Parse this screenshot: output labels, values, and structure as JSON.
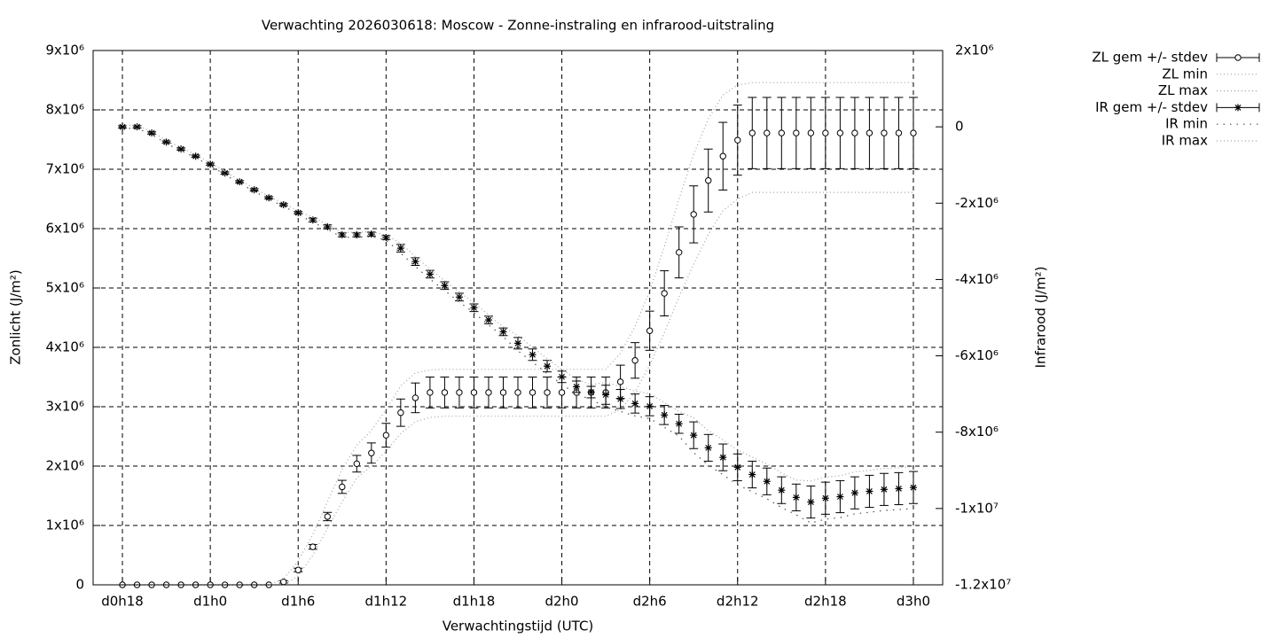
{
  "chart_data": {
    "type": "errorbar",
    "title": "Verwachting 2026030618: Moscow - Zonne-instraling en infrarood-uitstraling",
    "xlabel": "Verwachtingstijd (UTC)",
    "ylabel": "Zonlicht (J/m²)",
    "y2label": "Infrarood (J/m²)",
    "grid": true,
    "legend": "outside",
    "xlim": [
      16,
      74
    ],
    "xticks": [
      {
        "value": 18,
        "label": "d0h18"
      },
      {
        "value": 24,
        "label": "d1h0"
      },
      {
        "value": 30,
        "label": "d1h6"
      },
      {
        "value": 36,
        "label": "d1h12"
      },
      {
        "value": 42,
        "label": "d1h18"
      },
      {
        "value": 48,
        "label": "d2h0"
      },
      {
        "value": 54,
        "label": "d2h6"
      },
      {
        "value": 60,
        "label": "d2h12"
      },
      {
        "value": 66,
        "label": "d2h18"
      },
      {
        "value": 72,
        "label": "d3h0"
      }
    ],
    "ylim": [
      0,
      9000000
    ],
    "yticks": [
      0,
      {
        "value": 1000000,
        "label": "1x10⁶"
      },
      {
        "value": 2000000,
        "label": "2x10⁶"
      },
      {
        "value": 3000000,
        "label": "3x10⁶"
      },
      {
        "value": 4000000,
        "label": "4x10⁶"
      },
      {
        "value": 5000000,
        "label": "5x10⁶"
      },
      {
        "value": 6000000,
        "label": "6x10⁶"
      },
      {
        "value": 7000000,
        "label": "7x10⁶"
      },
      {
        "value": 8000000,
        "label": "8x10⁶"
      },
      {
        "value": 9000000,
        "label": "9x10⁶"
      }
    ],
    "y2lim": [
      -12000000,
      2000000
    ],
    "y2ticks": [
      {
        "value": -12000000,
        "label": "-1.2x10⁷"
      },
      {
        "value": -10000000,
        "label": "-1x10⁷"
      },
      {
        "value": -8000000,
        "label": "-8x10⁶"
      },
      {
        "value": -6000000,
        "label": "-6x10⁶"
      },
      {
        "value": -4000000,
        "label": "-4x10⁶"
      },
      {
        "value": -2000000,
        "label": "-2x10⁶"
      },
      0,
      {
        "value": 2000000,
        "label": "2x10⁶"
      }
    ],
    "x": [
      18,
      19,
      20,
      21,
      22,
      23,
      24,
      25,
      26,
      27,
      28,
      29,
      30,
      31,
      32,
      33,
      34,
      35,
      36,
      37,
      38,
      39,
      40,
      41,
      42,
      43,
      44,
      45,
      46,
      47,
      48,
      49,
      50,
      51,
      52,
      53,
      54,
      55,
      56,
      57,
      58,
      59,
      60,
      61,
      62,
      63,
      64,
      65,
      66,
      67,
      68,
      69,
      70,
      71,
      72
    ],
    "series": [
      {
        "name": "ZL gem +/- stdev",
        "color": "#000000",
        "marker": "circle",
        "axis": "y",
        "values": [
          0,
          0,
          0,
          0,
          0,
          0,
          0,
          0,
          0,
          0,
          0,
          50000,
          250000,
          640000,
          1150000,
          1650000,
          2040000,
          2220000,
          2520000,
          2900000,
          3150000,
          3240000,
          3240000,
          3240000,
          3240000,
          3240000,
          3240000,
          3240000,
          3240000,
          3240000,
          3240000,
          3240000,
          3240000,
          3240000,
          3420000,
          3780000,
          4280000,
          4910000,
          5600000,
          6240000,
          6810000,
          7220000,
          7490000,
          7610000,
          7610000,
          7610000,
          7610000,
          7610000,
          7610000,
          7610000,
          7610000,
          7610000,
          7610000,
          7610000,
          7610000
        ],
        "errors": [
          0,
          0,
          0,
          0,
          0,
          0,
          0,
          0,
          0,
          0,
          0,
          20000,
          30000,
          40000,
          70000,
          110000,
          140000,
          170000,
          200000,
          230000,
          250000,
          260000,
          260000,
          260000,
          260000,
          260000,
          260000,
          260000,
          260000,
          260000,
          260000,
          260000,
          260000,
          260000,
          280000,
          300000,
          330000,
          380000,
          430000,
          480000,
          530000,
          570000,
          590000,
          600000,
          600000,
          600000,
          600000,
          600000,
          600000,
          600000,
          600000,
          600000,
          600000,
          600000,
          600000
        ]
      },
      {
        "name": "ZL min",
        "color": "#a0a0a0",
        "style": "dotted",
        "axis": "y",
        "values": [
          0,
          0,
          0,
          0,
          0,
          0,
          0,
          0,
          0,
          0,
          0,
          0,
          150000,
          500000,
          950000,
          1400000,
          1800000,
          2000000,
          2250000,
          2550000,
          2750000,
          2820000,
          2840000,
          2840000,
          2840000,
          2840000,
          2840000,
          2840000,
          2840000,
          2840000,
          2840000,
          2840000,
          2840000,
          2840000,
          2950000,
          3250000,
          3700000,
          4250000,
          4850000,
          5400000,
          5900000,
          6300000,
          6500000,
          6610000,
          6610000,
          6610000,
          6610000,
          6610000,
          6610000,
          6610000,
          6610000,
          6610000,
          6610000,
          6610000,
          6610000
        ]
      },
      {
        "name": "ZL max",
        "color": "#a0a0a0",
        "style": "dotted",
        "axis": "y",
        "values": [
          0,
          0,
          0,
          0,
          0,
          0,
          0,
          0,
          0,
          0,
          0,
          100000,
          400000,
          850000,
          1400000,
          1950000,
          2350000,
          2600000,
          2950000,
          3350000,
          3570000,
          3620000,
          3630000,
          3630000,
          3630000,
          3630000,
          3630000,
          3630000,
          3630000,
          3630000,
          3630000,
          3630000,
          3630000,
          3630000,
          3900000,
          4350000,
          4950000,
          5700000,
          6500000,
          7250000,
          7850000,
          8250000,
          8420000,
          8460000,
          8460000,
          8460000,
          8460000,
          8460000,
          8460000,
          8460000,
          8460000,
          8460000,
          8460000,
          8460000,
          8460000
        ]
      },
      {
        "name": "IR gem +/- stdev",
        "color": "#000000",
        "marker": "star",
        "axis": "y2",
        "values": [
          0,
          0,
          -160000,
          -400000,
          -580000,
          -770000,
          -980000,
          -1210000,
          -1440000,
          -1650000,
          -1860000,
          -2040000,
          -2250000,
          -2440000,
          -2620000,
          -2830000,
          -2830000,
          -2810000,
          -2900000,
          -3180000,
          -3530000,
          -3860000,
          -4160000,
          -4460000,
          -4740000,
          -5060000,
          -5370000,
          -5670000,
          -5970000,
          -6270000,
          -6550000,
          -6810000,
          -6950000,
          -7020000,
          -7130000,
          -7250000,
          -7320000,
          -7550000,
          -7780000,
          -8080000,
          -8410000,
          -8660000,
          -8920000,
          -9110000,
          -9290000,
          -9520000,
          -9710000,
          -9830000,
          -9730000,
          -9690000,
          -9590000,
          -9550000,
          -9500000,
          -9480000,
          -9450000
        ],
        "errors": [
          30000,
          30000,
          30000,
          30000,
          30000,
          30000,
          30000,
          30000,
          30000,
          30000,
          30000,
          30000,
          30000,
          50000,
          50000,
          50000,
          50000,
          50000,
          50000,
          100000,
          100000,
          100000,
          100000,
          100000,
          100000,
          100000,
          100000,
          150000,
          150000,
          150000,
          150000,
          150000,
          150000,
          250000,
          250000,
          250000,
          250000,
          250000,
          250000,
          350000,
          350000,
          350000,
          350000,
          350000,
          350000,
          350000,
          350000,
          420000,
          420000,
          420000,
          420000,
          420000,
          420000,
          420000,
          420000
        ]
      },
      {
        "name": "IR min",
        "color": "#505050",
        "style": "sparse",
        "axis": "y2",
        "values": [
          -40000,
          -40000,
          -200000,
          -440000,
          -620000,
          -810000,
          -1020000,
          -1250000,
          -1480000,
          -1690000,
          -1900000,
          -2080000,
          -2290000,
          -2505000,
          -2685000,
          -2895000,
          -2895000,
          -2875000,
          -2965000,
          -3310000,
          -3660000,
          -3990000,
          -4290000,
          -4590000,
          -4870000,
          -5190000,
          -5500000,
          -5865000,
          -6165000,
          -6465000,
          -6745000,
          -7005000,
          -7145000,
          -7345000,
          -7455000,
          -7575000,
          -7645000,
          -7875000,
          -8105000,
          -8535000,
          -8865000,
          -9115000,
          -9375000,
          -9565000,
          -9745000,
          -9975000,
          -10165000,
          -10380000,
          -10280000,
          -10240000,
          -10140000,
          -10100000,
          -10050000,
          -10030000,
          -10000000
        ]
      },
      {
        "name": "IR max",
        "color": "#a0a0a0",
        "style": "dotted",
        "axis": "y2",
        "values": [
          40000,
          40000,
          -120000,
          -360000,
          -540000,
          -730000,
          -940000,
          -1170000,
          -1400000,
          -1610000,
          -1820000,
          -2000000,
          -2210000,
          -2375000,
          -2555000,
          -2765000,
          -2765000,
          -2745000,
          -2835000,
          -3050000,
          -3400000,
          -3730000,
          -4030000,
          -4330000,
          -4610000,
          -4930000,
          -5240000,
          -5475000,
          -5775000,
          -6075000,
          -6355000,
          -6615000,
          -6755000,
          -6695000,
          -6805000,
          -6925000,
          -6995000,
          -7225000,
          -7455000,
          -7625000,
          -7955000,
          -8205000,
          -8465000,
          -8655000,
          -8835000,
          -9065000,
          -9255000,
          -9280000,
          -9180000,
          -9140000,
          -9040000,
          -9000000,
          -8950000,
          -8930000,
          -8900000
        ]
      }
    ]
  }
}
